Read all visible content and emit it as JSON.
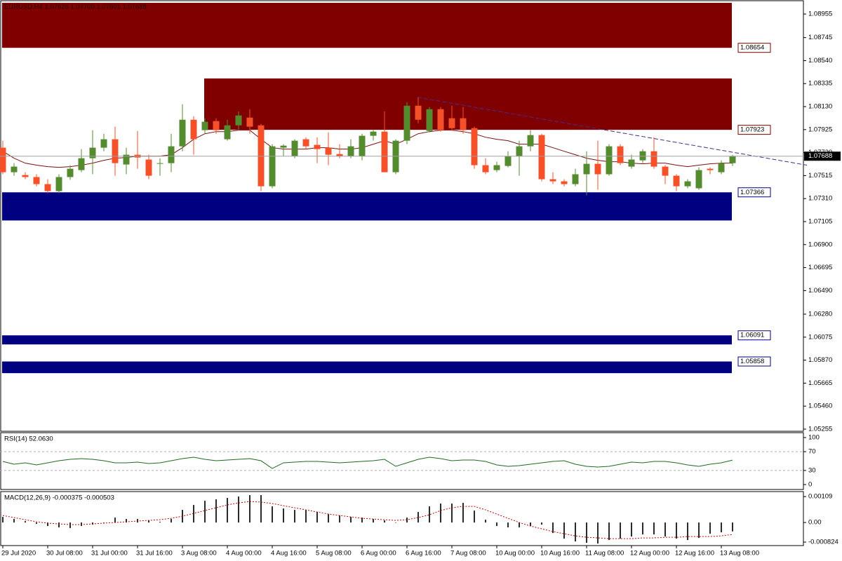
{
  "chart_data": [
    {
      "type": "candlestick",
      "title": "EURUSD,H4  1.07626 1.07700 1.07601 1.07688",
      "categories": [
        "29 Jul 2020",
        null,
        null,
        null,
        "30 Jul 08:00",
        null,
        null,
        null,
        "31 Jul 00:00",
        null,
        null,
        null,
        "31 Jul 16:00",
        null,
        null,
        null,
        "3 Aug 08:00",
        null,
        null,
        null,
        "4 Aug 00:00",
        null,
        null,
        null,
        "4 Aug 16:00",
        null,
        null,
        null,
        "5 Aug 08:00",
        null,
        null,
        null,
        "6 Aug 00:00",
        null,
        null,
        null,
        "6 Aug 16:00",
        null,
        null,
        null,
        "7 Aug 08:00",
        null,
        null,
        null,
        "10 Aug 00:00",
        null,
        null,
        null,
        "10 Aug 16:00",
        null,
        null,
        null,
        "11 Aug 08:00",
        null,
        null,
        null,
        "12 Aug 00:00",
        null,
        null,
        null,
        "12 Aug 16:00",
        null,
        null,
        null,
        "13 Aug 08:00",
        null
      ],
      "ohlc": [
        [
          1.07764,
          1.07826,
          1.07527,
          1.07545
        ],
        [
          1.07545,
          1.07626,
          1.07514,
          1.07595
        ],
        [
          1.0752,
          1.07545,
          1.07483,
          1.07502
        ],
        [
          1.07502,
          1.07527,
          1.0742,
          1.07439
        ],
        [
          1.07439,
          1.07483,
          1.07358,
          1.07377
        ],
        [
          1.07377,
          1.07527,
          1.07358,
          1.07502
        ],
        [
          1.07502,
          1.07608,
          1.07477,
          1.07576
        ],
        [
          1.07564,
          1.07751,
          1.07545,
          1.0767
        ],
        [
          1.0767,
          1.0792,
          1.07527,
          1.07764
        ],
        [
          1.07764,
          1.07888,
          1.07732,
          1.07839
        ],
        [
          1.07839,
          1.07951,
          1.07514,
          1.07626
        ],
        [
          1.07614,
          1.07764,
          1.07527,
          1.07701
        ],
        [
          1.07701,
          1.07913,
          1.07576,
          1.07676
        ],
        [
          1.07658,
          1.07701,
          1.07483,
          1.07514
        ],
        [
          1.0762,
          1.0767,
          1.07514,
          1.07626
        ],
        [
          1.07626,
          1.07888,
          1.07545,
          1.07776
        ],
        [
          1.07776,
          1.08151,
          1.07732,
          1.08013
        ],
        [
          1.08013,
          1.08044,
          1.07701,
          1.07839
        ],
        [
          1.0792,
          1.08026,
          1.07888,
          1.07995
        ],
        [
          1.08001,
          1.08026,
          1.07888,
          1.0792
        ],
        [
          1.07839,
          1.08013,
          1.07826,
          1.07963
        ],
        [
          1.07963,
          1.08088,
          1.0792,
          1.08051
        ],
        [
          1.08032,
          1.08107,
          1.07888,
          1.07951
        ],
        [
          1.07963,
          1.07976,
          1.07377,
          1.0742
        ],
        [
          1.0742,
          1.07795,
          1.07402,
          1.07776
        ],
        [
          1.07764,
          1.07795,
          1.07689,
          1.07782
        ],
        [
          1.07689,
          1.07839,
          1.0767,
          1.07826
        ],
        [
          1.07839,
          1.07857,
          1.07751,
          1.07776
        ],
        [
          1.07789,
          1.07857,
          1.07626,
          1.07751
        ],
        [
          1.07764,
          1.07901,
          1.07608,
          1.07701
        ],
        [
          1.07707,
          1.07795,
          1.0767,
          1.07689
        ],
        [
          1.07689,
          1.07839,
          1.0767,
          1.07776
        ],
        [
          1.07689,
          1.07888,
          1.07651,
          1.0787
        ],
        [
          1.0787,
          1.0792,
          1.07826,
          1.07907
        ],
        [
          1.07907,
          1.08088,
          1.07545,
          1.07545
        ],
        [
          1.07545,
          1.07839,
          1.07527,
          1.07826
        ],
        [
          1.07826,
          1.08169,
          1.07795,
          1.08138
        ],
        [
          1.08138,
          1.08213,
          1.07982,
          1.08013
        ],
        [
          1.07913,
          1.08126,
          1.07901,
          1.08107
        ],
        [
          1.08107,
          1.08126,
          1.07907,
          1.0792
        ],
        [
          1.08026,
          1.08138,
          1.0792,
          1.07938
        ],
        [
          1.08026,
          1.08126,
          1.07888,
          1.0792
        ],
        [
          1.07938,
          1.07951,
          1.07576,
          1.07608
        ],
        [
          1.07608,
          1.0767,
          1.07527,
          1.07545
        ],
        [
          1.07564,
          1.07639,
          1.07545,
          1.07608
        ],
        [
          1.07601,
          1.07732,
          1.07589,
          1.07689
        ],
        [
          1.07689,
          1.07826,
          1.07514,
          1.07776
        ],
        [
          1.07776,
          1.0792,
          1.07732,
          1.07876
        ],
        [
          1.07876,
          1.07888,
          1.07464,
          1.07483
        ],
        [
          1.07483,
          1.07545,
          1.07439,
          1.07464
        ],
        [
          1.07464,
          1.07483,
          1.0742,
          1.07439
        ],
        [
          1.07439,
          1.07576,
          1.0742,
          1.07527
        ],
        [
          1.07527,
          1.07732,
          1.07339,
          1.0762
        ],
        [
          1.0762,
          1.07826,
          1.07389,
          1.07527
        ],
        [
          1.07527,
          1.07795,
          1.07514,
          1.07776
        ],
        [
          1.07776,
          1.07795,
          1.07608,
          1.07626
        ],
        [
          1.07595,
          1.07701,
          1.07576,
          1.07658
        ],
        [
          1.07651,
          1.07751,
          1.07626,
          1.07732
        ],
        [
          1.07732,
          1.07857,
          1.07576,
          1.07595
        ],
        [
          1.07595,
          1.07608,
          1.07439,
          1.07514
        ],
        [
          1.07514,
          1.07527,
          1.07377,
          1.0742
        ],
        [
          1.0742,
          1.07483,
          1.07402,
          1.07464
        ],
        [
          1.07402,
          1.07589,
          1.07389,
          1.07564
        ],
        [
          1.07576,
          1.07589,
          1.07527,
          1.07564
        ],
        [
          1.07545,
          1.07651,
          1.07527,
          1.07626
        ],
        [
          1.07626,
          1.077,
          1.07601,
          1.07688
        ]
      ],
      "up_color": "#548b2f",
      "down_color": "#f4502a",
      "ylim": [
        1.05236,
        1.09074
      ],
      "yticks": [
        1.08955,
        1.08745,
        {
          "value": 1.0854,
          "label": "1.08540"
        },
        1.08335,
        {
          "value": 1.0813,
          "label": "1.08130"
        },
        1.07925,
        {
          "value": 1.0772,
          "label": "1.07720"
        },
        1.07515,
        {
          "value": 1.0731,
          "label": "1.07310"
        },
        1.07105,
        {
          "value": 1.069,
          "label": "1.06900"
        },
        1.06695,
        {
          "value": 1.0649,
          "label": "1.06490"
        },
        {
          "value": 1.0628,
          "label": "1.06280"
        },
        1.06075,
        {
          "value": 1.0587,
          "label": "1.05870"
        },
        1.05665,
        {
          "value": 1.0546,
          "label": "1.05460"
        },
        1.05255
      ],
      "last_price": 1.07688,
      "zones": [
        {
          "price": 1.08654,
          "to": 1.09055,
          "color": "#800000"
        },
        {
          "price": 1.07923,
          "to": 1.08381,
          "color": "#800000"
        },
        {
          "price": 1.07366,
          "to": 1.07115,
          "color": "#000080"
        },
        {
          "price": 1.06091,
          "to": 1.0601,
          "color": "#000080"
        },
        {
          "price": 1.05858,
          "to": 1.05754,
          "color": "#000080"
        }
      ],
      "ma": {
        "color": "#7a1010",
        "values": [
          1.07732,
          1.0767,
          1.07626,
          1.07608,
          1.07595,
          1.07589,
          1.07595,
          1.07608,
          1.07626,
          1.07651,
          1.0767,
          1.07676,
          1.07689,
          1.07689,
          1.07689,
          1.07701,
          1.07764,
          1.07839,
          1.07888,
          1.07907,
          1.07907,
          1.0792,
          1.0792,
          1.07839,
          1.07764,
          1.07751,
          1.07751,
          1.07751,
          1.07764,
          1.07764,
          1.07751,
          1.07751,
          1.07764,
          1.07795,
          1.07826,
          1.07795,
          1.07839,
          1.07888,
          1.07907,
          1.0792,
          1.0792,
          1.07907,
          1.07888,
          1.07857,
          1.07839,
          1.07826,
          1.07795,
          1.07795,
          1.07795,
          1.07764,
          1.07732,
          1.07701,
          1.0767,
          1.07651,
          1.07639,
          1.07639,
          1.07626,
          1.0762,
          1.07626,
          1.07626,
          1.07608,
          1.07595,
          1.07608,
          1.0762,
          1.07626,
          1.07626
        ]
      },
      "trendline": {
        "color": "#4b2a8a",
        "values": [
          1.08213,
          1.07608
        ]
      }
    },
    {
      "type": "line",
      "title": "RSI(14) 52.0630",
      "color": "#1f6b1f",
      "values": [
        49.3,
        43.3,
        46.3,
        41.8,
        46.3,
        50.7,
        53.7,
        55.2,
        53.7,
        50.7,
        46.3,
        46.3,
        47.8,
        44.8,
        46.3,
        50.7,
        55.2,
        58.2,
        53.7,
        50.7,
        52.2,
        53.7,
        55.2,
        50.7,
        34.3,
        46.3,
        47.8,
        49.3,
        49.3,
        47.8,
        46.3,
        47.8,
        49.3,
        50.7,
        53.7,
        38.8,
        46.3,
        53.7,
        58.2,
        55.2,
        50.7,
        52.2,
        52.2,
        49.3,
        41.8,
        38.8,
        40.3,
        43.3,
        46.3,
        49.3,
        50.7,
        43.3,
        38.8,
        37.3,
        38.8,
        43.3,
        47.8,
        46.3,
        49.3,
        49.3,
        46.3,
        41.8,
        38.8,
        43.3,
        46.3,
        52.063
      ],
      "ylim": [
        -10.4,
        110.4
      ],
      "yticks": [
        0,
        30,
        70,
        100
      ],
      "levels": [
        30,
        70
      ]
    },
    {
      "type": "macd",
      "title": "MACD(12,26,9) -0.000375 -0.000503",
      "color": "#2b2b2b",
      "values": [
        0.000236,
        0.000148,
        5.9e-05,
        -5.9e-05,
        -0.000148,
        -0.000207,
        -0.000236,
        -0.000148,
        -8.9e-05,
        0,
        0.000207,
        0.000148,
        0.000148,
        8.9e-05,
        3e-05,
        0.000148,
        0.000531,
        0.000738,
        0.000915,
        0.000974,
        0.001033,
        0.001092,
        0.001151,
        0.001151,
        0.000679,
        0.00059,
        0.000531,
        0.000531,
        0.000443,
        0.000354,
        0.000295,
        0.000236,
        0.000207,
        0.000148,
        8.9e-05,
        0,
        0.000207,
        0.000443,
        0.000679,
        0.000797,
        0.000797,
        0.000826,
        0.000502,
        0.000118,
        -0.000148,
        -0.000207,
        -0.000207,
        -0.000148,
        -8.9e-05,
        -0.000443,
        -0.000679,
        -0.000797,
        -0.000856,
        -0.000885,
        -0.000738,
        -0.000679,
        -0.00059,
        -0.000502,
        -0.000502,
        -0.00059,
        -0.000679,
        -0.000738,
        -0.000649,
        -0.000472,
        -0.000413,
        -0.000375
      ],
      "signal": {
        "color": "#c00000",
        "values": [
          0.000295,
          0.000207,
          0.000118,
          3e-05,
          -3e-05,
          -5.9e-05,
          -8.9e-05,
          -8.9e-05,
          -5.9e-05,
          -3e-05,
          0,
          3e-05,
          5.9e-05,
          8.9e-05,
          0.000118,
          0.000177,
          0.000266,
          0.000384,
          0.000502,
          0.00062,
          0.000738,
          0.000826,
          0.000885,
          0.000856,
          0.000797,
          0.000708,
          0.00062,
          0.000531,
          0.000443,
          0.000354,
          0.000295,
          0.000236,
          0.000177,
          0.000148,
          0.000118,
          8.9e-05,
          0.000118,
          0.000207,
          0.000325,
          0.000502,
          0.00062,
          0.000679,
          0.000679,
          0.000531,
          0.000354,
          0.000177,
          0,
          -0.000148,
          -0.000266,
          -0.000384,
          -0.000472,
          -0.000561,
          -0.00062,
          -0.000649,
          -0.000679,
          -0.000679,
          -0.000679,
          -0.000649,
          -0.000649,
          -0.00062,
          -0.00062,
          -0.00059,
          -0.00059,
          -0.00059,
          -0.000561,
          -0.000503
        ]
      },
      "ylim": [
        -0.00097,
        0.0013
      ],
      "yticks": [
        0.00109,
        {
          "value": 0,
          "label": "0.00"
        },
        -0.000824
      ]
    }
  ]
}
